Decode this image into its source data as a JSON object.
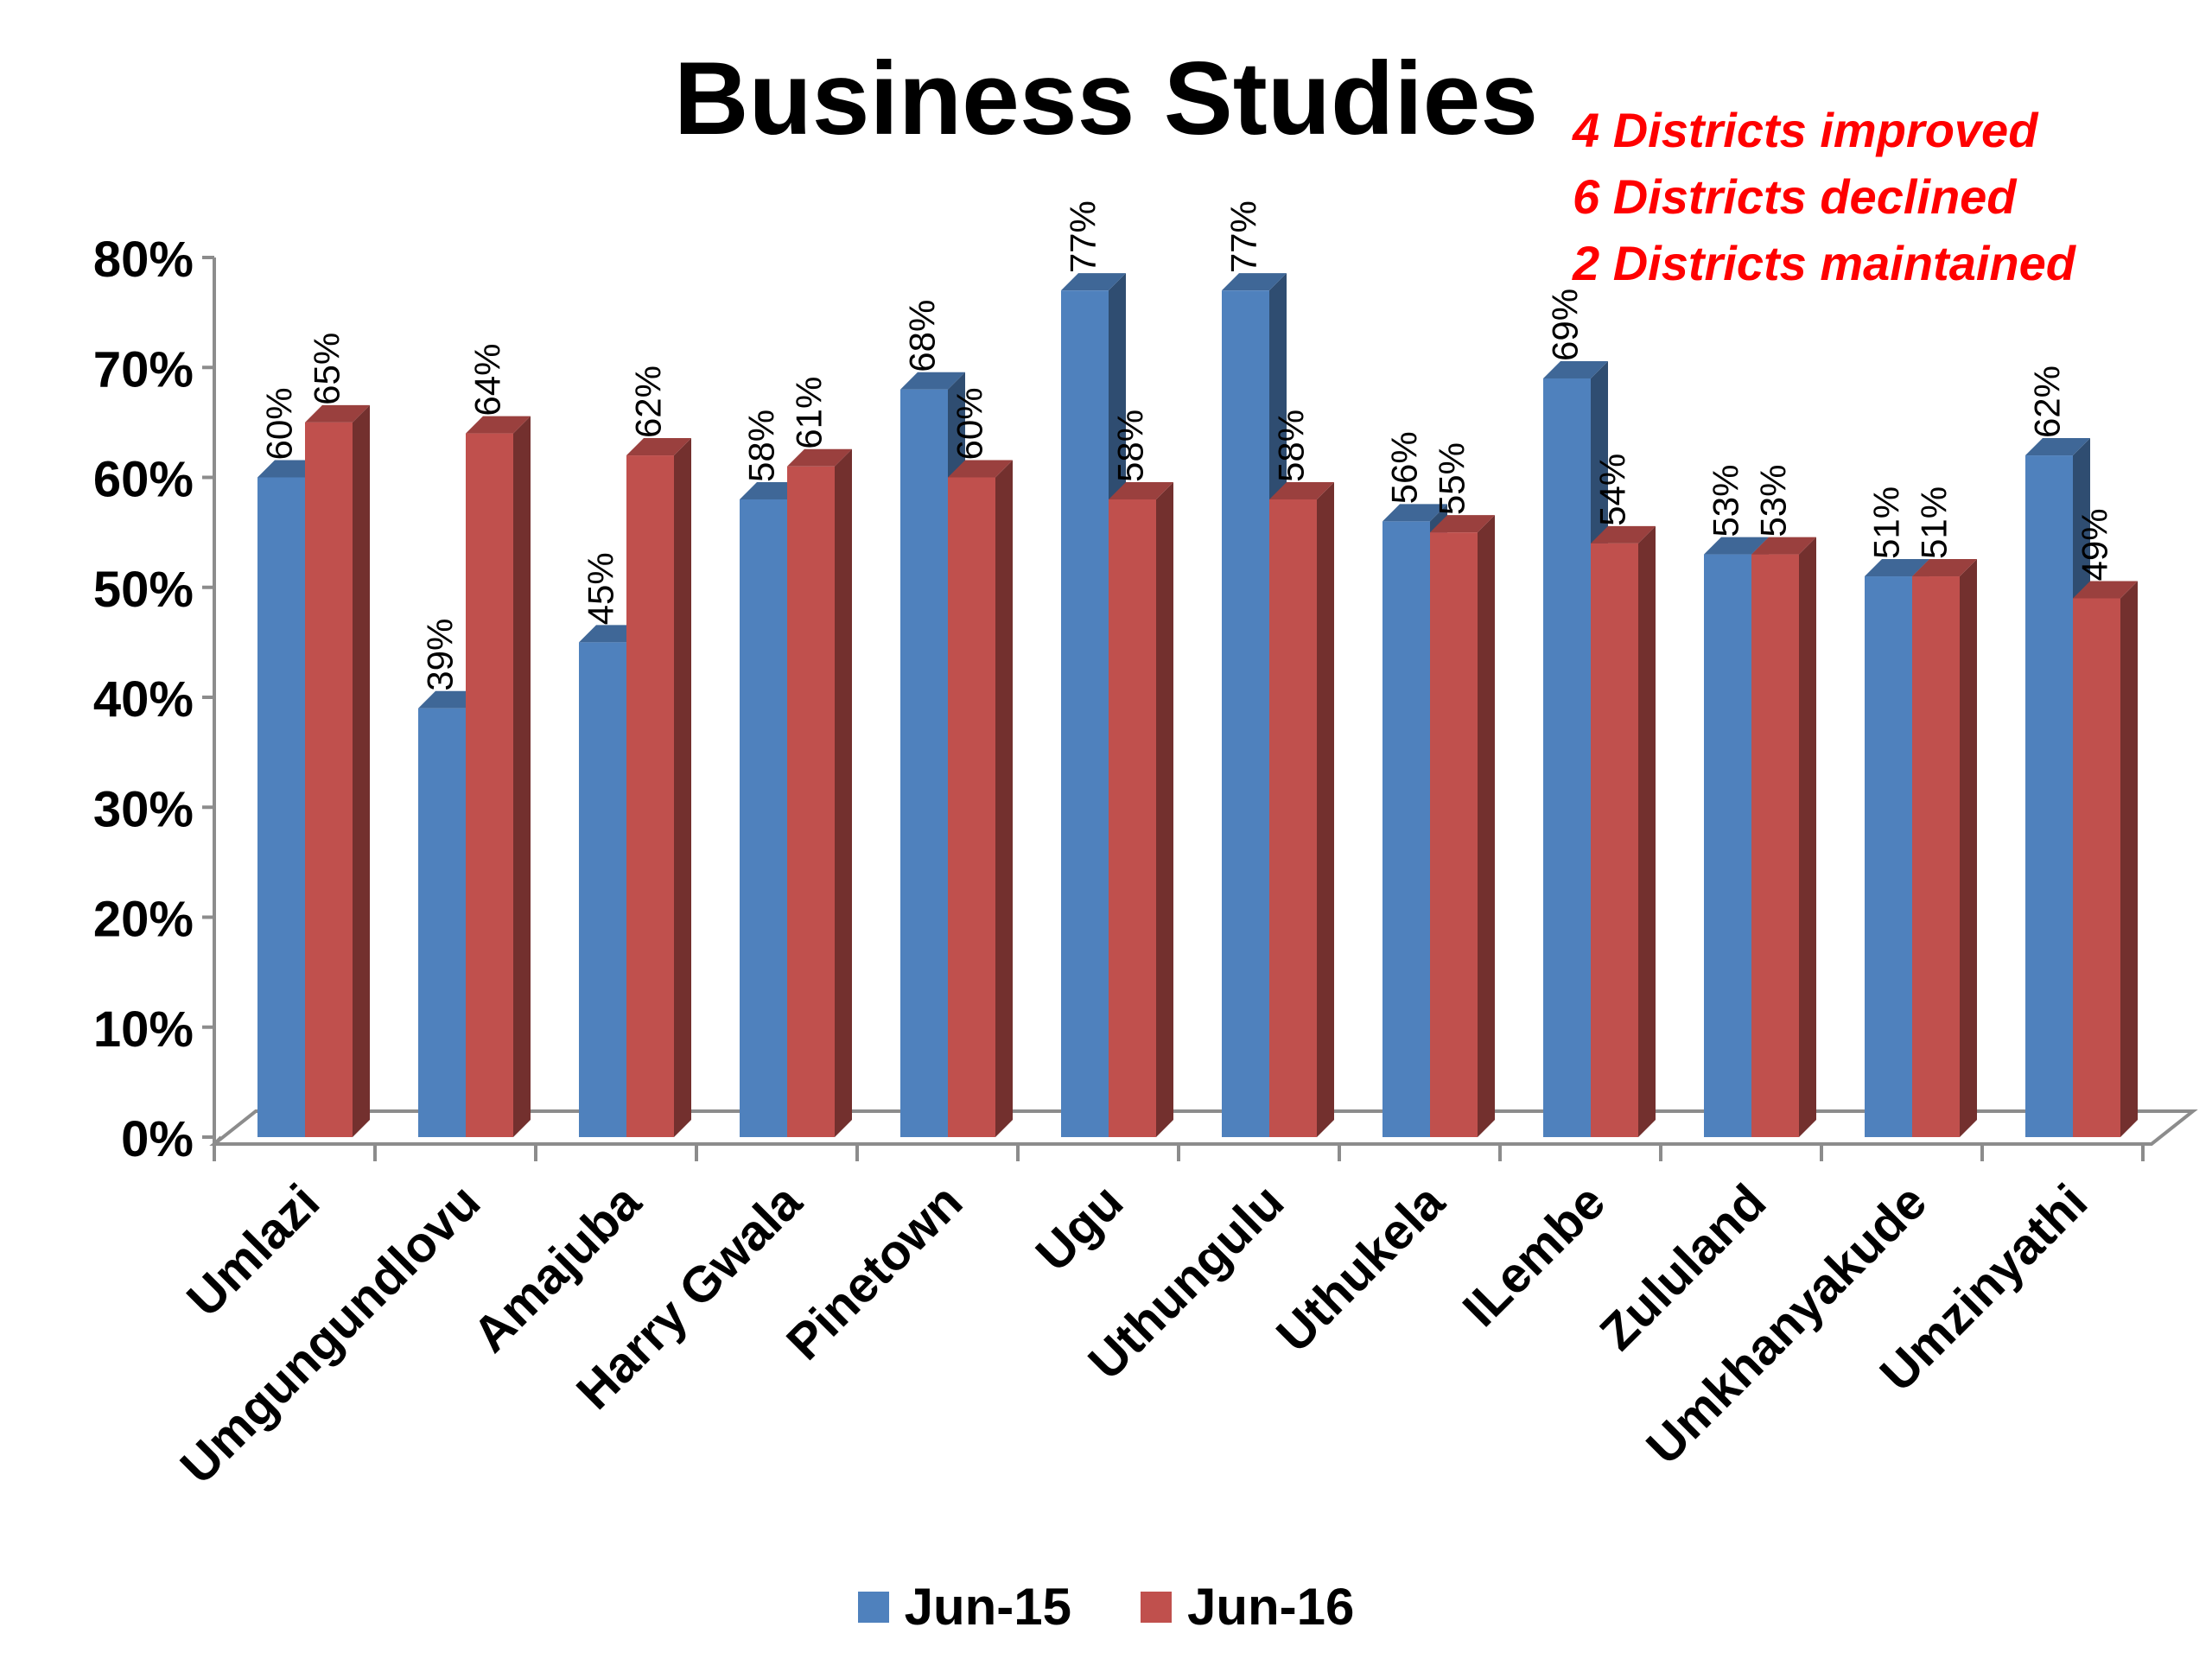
{
  "chart_data": {
    "type": "bar",
    "title": "Business Studies",
    "annotations": [
      "4 Districts improved",
      "6 Districts declined",
      "2 Districts maintained"
    ],
    "annotation_color": "#ff0000",
    "categories": [
      "Umlazi",
      "Umgungundlovu",
      "Amajuba",
      "Harry Gwala",
      "Pinetown",
      "Ugu",
      "Uthungulu",
      "Uthukela",
      "ILembe",
      "Zululand",
      "Umkhanyakude",
      "Umzinyathi"
    ],
    "series": [
      {
        "name": "Jun-15",
        "color": "#4f81bd",
        "values": [
          60,
          39,
          45,
          58,
          68,
          77,
          77,
          56,
          69,
          53,
          51,
          62
        ]
      },
      {
        "name": "Jun-16",
        "color": "#c0504d",
        "values": [
          65,
          64,
          62,
          61,
          60,
          58,
          58,
          55,
          54,
          53,
          51,
          49
        ]
      }
    ],
    "ylim": [
      0,
      80
    ],
    "yticks": [
      "0%",
      "10%",
      "20%",
      "30%",
      "40%",
      "50%",
      "60%",
      "70%",
      "80%"
    ],
    "data_label_suffix": "%",
    "legend_position": "bottom",
    "grid": false,
    "style": "3d-clustered-column"
  }
}
